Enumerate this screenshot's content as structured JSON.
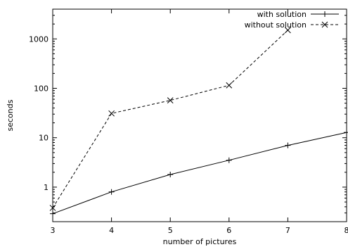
{
  "chart_data": {
    "type": "line",
    "title": "",
    "xlabel": "number of pictures",
    "ylabel": "seconds",
    "xlim": [
      3,
      8
    ],
    "ylim": [
      0.2,
      4000
    ],
    "yscale": "log",
    "grid": false,
    "legend_position": "top-right",
    "x_ticks": [
      3,
      4,
      5,
      6,
      7,
      8
    ],
    "x_tick_labels": [
      "3",
      "4",
      "5",
      "6",
      "7",
      "8"
    ],
    "y_ticks": [
      1,
      10,
      100,
      1000
    ],
    "y_tick_labels": [
      "1",
      "10",
      "100",
      "1000"
    ],
    "series": [
      {
        "name": "with solution",
        "marker": "+",
        "line_style": "solid",
        "color": "#000000",
        "x": [
          3,
          4,
          5,
          6,
          7,
          8
        ],
        "y": [
          0.29,
          0.8,
          1.8,
          3.5,
          7.0,
          12.8
        ]
      },
      {
        "name": "without solution",
        "marker": "x",
        "line_style": "dashed",
        "color": "#000000",
        "x": [
          3,
          4,
          5,
          6,
          7
        ],
        "y": [
          0.38,
          31,
          57,
          115,
          1500
        ]
      }
    ]
  }
}
